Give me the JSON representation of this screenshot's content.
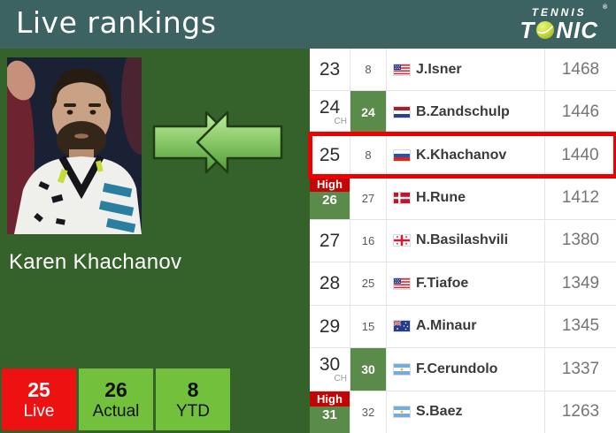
{
  "header": {
    "title": "Live rankings",
    "logo": {
      "top": "TENNIS",
      "registered": "®",
      "bottom_left": "T",
      "bottom_right": "NIC"
    }
  },
  "player": {
    "name": "Karen Khachanov"
  },
  "summary": {
    "live": {
      "value": "25",
      "label": "Live"
    },
    "actual": {
      "value": "26",
      "label": "Actual"
    },
    "ytd": {
      "value": "8",
      "label": "YTD"
    }
  },
  "table": {
    "rows": [
      {
        "rank": "23",
        "sub": "",
        "high": "",
        "ch": "8",
        "ch_green": false,
        "flag": "us",
        "name": "J.Isner",
        "points": "1468",
        "highlight": false
      },
      {
        "rank": "24",
        "sub": "CH",
        "high": "",
        "ch": "24",
        "ch_green": true,
        "flag": "nl",
        "name": "B.Zandschulp",
        "points": "1446",
        "highlight": false
      },
      {
        "rank": "25",
        "sub": "",
        "high": "",
        "ch": "8",
        "ch_green": false,
        "flag": "ru",
        "name": "K.Khachanov",
        "points": "1440",
        "highlight": true
      },
      {
        "rank": "26",
        "sub": "",
        "high": "High",
        "ch": "27",
        "ch_green": false,
        "flag": "dk",
        "name": "H.Rune",
        "points": "1412",
        "highlight": false
      },
      {
        "rank": "27",
        "sub": "",
        "high": "",
        "ch": "16",
        "ch_green": false,
        "flag": "ge",
        "name": "N.Basilashvili",
        "points": "1380",
        "highlight": false
      },
      {
        "rank": "28",
        "sub": "",
        "high": "",
        "ch": "25",
        "ch_green": false,
        "flag": "us",
        "name": "F.Tiafoe",
        "points": "1349",
        "highlight": false
      },
      {
        "rank": "29",
        "sub": "",
        "high": "",
        "ch": "15",
        "ch_green": false,
        "flag": "au",
        "name": "A.Minaur",
        "points": "1345",
        "highlight": false
      },
      {
        "rank": "30",
        "sub": "CH",
        "high": "",
        "ch": "30",
        "ch_green": true,
        "flag": "ar",
        "name": "F.Cerundolo",
        "points": "1337",
        "highlight": false
      },
      {
        "rank": "31",
        "sub": "",
        "high": "High",
        "ch": "32",
        "ch_green": false,
        "flag": "ar",
        "name": "S.Baez",
        "points": "1263",
        "highlight": false
      }
    ]
  },
  "icons": {
    "arrows": "double-arrow-converge-icon",
    "tennis_ball": "tennis-ball-icon",
    "flags": [
      "us-flag-icon",
      "nl-flag-icon",
      "ru-flag-icon",
      "dk-flag-icon",
      "ge-flag-icon",
      "au-flag-icon",
      "ar-flag-icon"
    ]
  },
  "colors": {
    "header_teal": "#3c6262",
    "panel_green": "#35612b",
    "table_cell_green": "#5b8b4b",
    "high_red": "#c40505",
    "highlight_border_red": "#ec0000",
    "live_red": "#ee1111",
    "summary_green": "#72c03c",
    "arrow_green_light": "#b9eb9b",
    "arrow_green_dark": "#4e9a37"
  }
}
